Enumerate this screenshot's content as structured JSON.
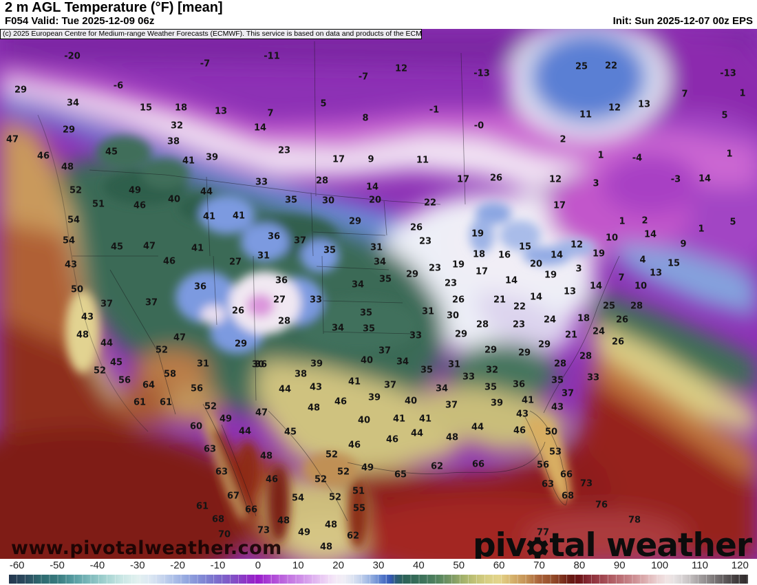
{
  "header": {
    "title": "2 m AGL Temperature (°F) [mean]",
    "valid": "F054 Valid: Tue 2025-12-09 06z",
    "init": "Init: Sun 2025-12-07 00z EPS",
    "copyright": "(c) 2025 European Centre for Medium-range Weather Forecasts (ECMWF). This service is based on data and products of the ECMWF."
  },
  "watermark": "www.pivotalweather.com",
  "logo": {
    "part1": "piv",
    "gear": "gear-icon",
    "part2": "tal weather"
  },
  "chart_data": {
    "type": "heatmap",
    "title": "2 m AGL Temperature (°F) [mean]",
    "units": "°F",
    "model": "EPS",
    "colorbar": {
      "ticks": [
        -60,
        -50,
        -40,
        -30,
        -20,
        -10,
        0,
        10,
        20,
        30,
        40,
        50,
        60,
        70,
        80,
        90,
        100,
        110,
        120
      ],
      "domain": [
        -62,
        122
      ],
      "stops": [
        [
          -62,
          "#23364e"
        ],
        [
          -58,
          "#2b4a5e"
        ],
        [
          -54,
          "#2e6a70"
        ],
        [
          -50,
          "#37797d"
        ],
        [
          -46,
          "#569ca1"
        ],
        [
          -42,
          "#7db9bb"
        ],
        [
          -38,
          "#a3d2d0"
        ],
        [
          -34,
          "#c9e6e4"
        ],
        [
          -30,
          "#e2f1f0"
        ],
        [
          -27,
          "#dde8f3"
        ],
        [
          -24,
          "#c8d6ee"
        ],
        [
          -21,
          "#adc0e8"
        ],
        [
          -18,
          "#96a9e0"
        ],
        [
          -15,
          "#8591d8"
        ],
        [
          -12,
          "#7d7bd0"
        ],
        [
          -9,
          "#7d64ca"
        ],
        [
          -6,
          "#834fc6"
        ],
        [
          -3,
          "#8f32c6"
        ],
        [
          0,
          "#991bca"
        ],
        [
          2,
          "#a637d3"
        ],
        [
          5,
          "#b657da"
        ],
        [
          8,
          "#c477e2"
        ],
        [
          11,
          "#d193e9"
        ],
        [
          14,
          "#e0b4f0"
        ],
        [
          17,
          "#eed4f5"
        ],
        [
          19,
          "#f4e7f7"
        ],
        [
          21,
          "#f2eef6"
        ],
        [
          23,
          "#e3e7f3"
        ],
        [
          25,
          "#cbd7ee"
        ],
        [
          27,
          "#aabfe6"
        ],
        [
          29,
          "#82a0da"
        ],
        [
          31,
          "#5377c9"
        ],
        [
          33,
          "#3458b4"
        ],
        [
          34,
          "#2d5a84"
        ],
        [
          36,
          "#2c6159"
        ],
        [
          39,
          "#356b58"
        ],
        [
          42,
          "#42765c"
        ],
        [
          45,
          "#55855e"
        ],
        [
          48,
          "#789763"
        ],
        [
          51,
          "#a2b16b"
        ],
        [
          54,
          "#c2c276"
        ],
        [
          57,
          "#d8cf83"
        ],
        [
          60,
          "#e3d48b"
        ],
        [
          62,
          "#dcc078"
        ],
        [
          64,
          "#d2aa66"
        ],
        [
          67,
          "#c38f54"
        ],
        [
          70,
          "#a96239"
        ],
        [
          73,
          "#97502c"
        ],
        [
          76,
          "#7c2f1c"
        ],
        [
          78,
          "#671812"
        ],
        [
          80,
          "#6d1416"
        ],
        [
          82,
          "#842832"
        ],
        [
          85,
          "#9b3f49"
        ],
        [
          88,
          "#b05c63"
        ],
        [
          91,
          "#bf757b"
        ],
        [
          94,
          "#cf9296"
        ],
        [
          97,
          "#e0b5b7"
        ],
        [
          100,
          "#edd7d8"
        ],
        [
          102,
          "#f1e5e5"
        ],
        [
          104,
          "#e4dfe0"
        ],
        [
          107,
          "#cbc6c7"
        ],
        [
          110,
          "#a39e9f"
        ],
        [
          113,
          "#837e7f"
        ],
        [
          116,
          "#615c5d"
        ],
        [
          119,
          "#423d3e"
        ],
        [
          122,
          "#2e292a"
        ]
      ]
    },
    "points": [
      [
        "-20",
        105,
        82
      ],
      [
        "-11",
        395,
        82
      ],
      [
        "-7",
        298,
        93
      ],
      [
        "12",
        583,
        100
      ],
      [
        "-13",
        700,
        107
      ],
      [
        "25",
        845,
        97
      ],
      [
        "22",
        888,
        96
      ],
      [
        "-13",
        1058,
        107
      ],
      [
        "29",
        30,
        131
      ],
      [
        "-6",
        172,
        125
      ],
      [
        "-7",
        528,
        112
      ],
      [
        "34",
        106,
        150
      ],
      [
        "15",
        212,
        157
      ],
      [
        "18",
        263,
        157
      ],
      [
        "13",
        321,
        162
      ],
      [
        "7",
        995,
        137
      ],
      [
        "1",
        1079,
        136
      ],
      [
        "32",
        257,
        183
      ],
      [
        "14",
        378,
        186
      ],
      [
        "7",
        393,
        165
      ],
      [
        "5",
        470,
        151
      ],
      [
        "8",
        531,
        172
      ],
      [
        "-1",
        631,
        160
      ],
      [
        "-0",
        696,
        183
      ],
      [
        "29",
        100,
        189
      ],
      [
        "13",
        936,
        152
      ],
      [
        "12",
        893,
        157
      ],
      [
        "11",
        851,
        167
      ],
      [
        "5",
        1053,
        168
      ],
      [
        "38",
        252,
        206
      ],
      [
        "23",
        413,
        219
      ],
      [
        "17",
        492,
        232
      ],
      [
        "9",
        539,
        232
      ],
      [
        "11",
        614,
        233
      ],
      [
        "47",
        18,
        203
      ],
      [
        "45",
        162,
        221
      ],
      [
        "41",
        274,
        234
      ],
      [
        "39",
        308,
        229
      ],
      [
        "46",
        63,
        227
      ],
      [
        "2",
        818,
        203
      ],
      [
        "1",
        873,
        226
      ],
      [
        "-4",
        926,
        230
      ],
      [
        "1",
        1060,
        224
      ],
      [
        "48",
        98,
        243
      ],
      [
        "17",
        673,
        261
      ],
      [
        "26",
        721,
        259
      ],
      [
        "12",
        807,
        261
      ],
      [
        "-3",
        982,
        261
      ],
      [
        "14",
        1024,
        260
      ],
      [
        "3",
        866,
        267
      ],
      [
        "33",
        380,
        265
      ],
      [
        "28",
        468,
        263
      ],
      [
        "14",
        541,
        272
      ],
      [
        "52",
        110,
        277
      ],
      [
        "49",
        196,
        277
      ],
      [
        "44",
        300,
        279
      ],
      [
        "40",
        253,
        290
      ],
      [
        "35",
        423,
        291
      ],
      [
        "30",
        477,
        292
      ],
      [
        "20",
        545,
        291
      ],
      [
        "22",
        625,
        295
      ],
      [
        "17",
        813,
        299
      ],
      [
        "51",
        143,
        297
      ],
      [
        "46",
        203,
        299
      ],
      [
        "54",
        107,
        320
      ],
      [
        "41",
        304,
        315
      ],
      [
        "41",
        347,
        314
      ],
      [
        "29",
        516,
        322
      ],
      [
        "26",
        605,
        331
      ],
      [
        "19",
        694,
        340
      ],
      [
        "1",
        904,
        322
      ],
      [
        "2",
        937,
        321
      ],
      [
        "1",
        1019,
        333
      ],
      [
        "5",
        1065,
        323
      ],
      [
        "54",
        100,
        350
      ],
      [
        "45",
        170,
        359
      ],
      [
        "47",
        217,
        358
      ],
      [
        "41",
        287,
        361
      ],
      [
        "46",
        246,
        380
      ],
      [
        "27",
        342,
        381
      ],
      [
        "43",
        103,
        385
      ],
      [
        "36",
        398,
        344
      ],
      [
        "37",
        436,
        350
      ],
      [
        "35",
        479,
        364
      ],
      [
        "31",
        383,
        372
      ],
      [
        "31",
        547,
        360
      ],
      [
        "23",
        618,
        351
      ],
      [
        "19",
        666,
        385
      ],
      [
        "18",
        696,
        370
      ],
      [
        "16",
        733,
        371
      ],
      [
        "34",
        552,
        381
      ],
      [
        "23",
        632,
        390
      ],
      [
        "17",
        700,
        395
      ],
      [
        "29",
        599,
        399
      ],
      [
        "15",
        763,
        359
      ],
      [
        "14",
        809,
        371
      ],
      [
        "12",
        838,
        356
      ],
      [
        "19",
        870,
        369
      ],
      [
        "10",
        889,
        346
      ],
      [
        "14",
        945,
        341
      ],
      [
        "9",
        993,
        355
      ],
      [
        "20",
        779,
        384
      ],
      [
        "19",
        800,
        400
      ],
      [
        "4",
        934,
        378
      ],
      [
        "15",
        979,
        383
      ],
      [
        "3",
        841,
        391
      ],
      [
        "13",
        953,
        397
      ],
      [
        "36",
        409,
        408
      ],
      [
        "23",
        655,
        412
      ],
      [
        "35",
        560,
        406
      ],
      [
        "34",
        520,
        414
      ],
      [
        "50",
        112,
        421
      ],
      [
        "36",
        291,
        417
      ],
      [
        "37",
        155,
        442
      ],
      [
        "37",
        220,
        440
      ],
      [
        "26",
        346,
        452
      ],
      [
        "27",
        406,
        436
      ],
      [
        "33",
        459,
        436
      ],
      [
        "26",
        666,
        436
      ],
      [
        "21",
        726,
        436
      ],
      [
        "14",
        743,
        408
      ],
      [
        "7",
        903,
        404
      ],
      [
        "14",
        866,
        416
      ],
      [
        "10",
        931,
        416
      ],
      [
        "13",
        828,
        424
      ],
      [
        "14",
        779,
        432
      ],
      [
        "43",
        127,
        461
      ],
      [
        "35",
        532,
        455
      ],
      [
        "31",
        622,
        453
      ],
      [
        "30",
        658,
        459
      ],
      [
        "28",
        413,
        467
      ],
      [
        "34",
        491,
        477
      ],
      [
        "35",
        536,
        478
      ],
      [
        "28",
        701,
        472
      ],
      [
        "22",
        755,
        446
      ],
      [
        "25",
        885,
        445
      ],
      [
        "28",
        925,
        445
      ],
      [
        "24",
        799,
        465
      ],
      [
        "18",
        848,
        463
      ],
      [
        "26",
        904,
        465
      ],
      [
        "48",
        120,
        487
      ],
      [
        "44",
        155,
        499
      ],
      [
        "47",
        261,
        491
      ],
      [
        "29",
        350,
        500
      ],
      [
        "33",
        604,
        488
      ],
      [
        "29",
        670,
        486
      ],
      [
        "23",
        754,
        472
      ],
      [
        "24",
        870,
        482
      ],
      [
        "21",
        830,
        487
      ],
      [
        "26",
        898,
        497
      ],
      [
        "29",
        791,
        501
      ],
      [
        "29",
        762,
        513
      ],
      [
        "28",
        851,
        518
      ],
      [
        "28",
        814,
        529
      ],
      [
        "52",
        235,
        509
      ],
      [
        "31",
        295,
        529
      ],
      [
        "45",
        169,
        527
      ],
      [
        "52",
        145,
        539
      ],
      [
        "58",
        247,
        544
      ],
      [
        "30",
        375,
        530
      ],
      [
        "37",
        559,
        510
      ],
      [
        "29",
        713,
        509
      ],
      [
        "39",
        460,
        529
      ],
      [
        "40",
        533,
        524
      ],
      [
        "34",
        585,
        526
      ],
      [
        "36",
        379,
        530
      ],
      [
        "38",
        437,
        544
      ],
      [
        "35",
        620,
        538
      ],
      [
        "31",
        660,
        530
      ],
      [
        "32",
        715,
        538
      ],
      [
        "56",
        181,
        553
      ],
      [
        "64",
        216,
        560
      ],
      [
        "56",
        286,
        565
      ],
      [
        "61",
        203,
        585
      ],
      [
        "61",
        241,
        585
      ],
      [
        "52",
        306,
        591
      ],
      [
        "49",
        328,
        609
      ],
      [
        "60",
        285,
        620
      ],
      [
        "44",
        356,
        627
      ],
      [
        "63",
        305,
        653
      ],
      [
        "63",
        322,
        686
      ],
      [
        "67",
        339,
        721
      ],
      [
        "61",
        294,
        736
      ],
      [
        "66",
        365,
        741
      ],
      [
        "68",
        317,
        755
      ],
      [
        "70",
        326,
        777
      ],
      [
        "43",
        459,
        563
      ],
      [
        "44",
        414,
        566
      ],
      [
        "41",
        515,
        555
      ],
      [
        "37",
        567,
        560
      ],
      [
        "33",
        681,
        548
      ],
      [
        "34",
        642,
        565
      ],
      [
        "35",
        713,
        563
      ],
      [
        "46",
        495,
        584
      ],
      [
        "48",
        456,
        593
      ],
      [
        "39",
        544,
        578
      ],
      [
        "40",
        597,
        583
      ],
      [
        "37",
        656,
        589
      ],
      [
        "39",
        722,
        586
      ],
      [
        "47",
        380,
        600
      ],
      [
        "40",
        529,
        611
      ],
      [
        "41",
        580,
        609
      ],
      [
        "41",
        618,
        609
      ],
      [
        "45",
        422,
        628
      ],
      [
        "44",
        606,
        630
      ],
      [
        "44",
        694,
        621
      ],
      [
        "46",
        570,
        639
      ],
      [
        "48",
        657,
        636
      ],
      [
        "48",
        387,
        663
      ],
      [
        "46",
        515,
        647
      ],
      [
        "52",
        482,
        661
      ],
      [
        "49",
        534,
        680
      ],
      [
        "52",
        499,
        686
      ],
      [
        "52",
        466,
        697
      ],
      [
        "46",
        395,
        697
      ],
      [
        "65",
        582,
        690
      ],
      [
        "62",
        635,
        678
      ],
      [
        "66",
        695,
        675
      ],
      [
        "51",
        521,
        714
      ],
      [
        "54",
        433,
        724
      ],
      [
        "52",
        487,
        723
      ],
      [
        "55",
        522,
        739
      ],
      [
        "73",
        383,
        771
      ],
      [
        "48",
        412,
        757
      ],
      [
        "48",
        481,
        763
      ],
      [
        "49",
        442,
        774
      ],
      [
        "62",
        513,
        779
      ],
      [
        "48",
        474,
        795
      ],
      [
        "36",
        754,
        559
      ],
      [
        "35",
        810,
        553
      ],
      [
        "33",
        862,
        549
      ],
      [
        "41",
        767,
        582
      ],
      [
        "37",
        825,
        572
      ],
      [
        "43",
        759,
        602
      ],
      [
        "43",
        810,
        592
      ],
      [
        "46",
        755,
        626
      ],
      [
        "50",
        801,
        628
      ],
      [
        "53",
        807,
        657
      ],
      [
        "56",
        789,
        676
      ],
      [
        "66",
        823,
        690
      ],
      [
        "63",
        796,
        704
      ],
      [
        "68",
        825,
        721
      ],
      [
        "73",
        852,
        703
      ],
      [
        "76",
        874,
        734
      ],
      [
        "78",
        922,
        756
      ],
      [
        "77",
        789,
        774
      ]
    ]
  }
}
